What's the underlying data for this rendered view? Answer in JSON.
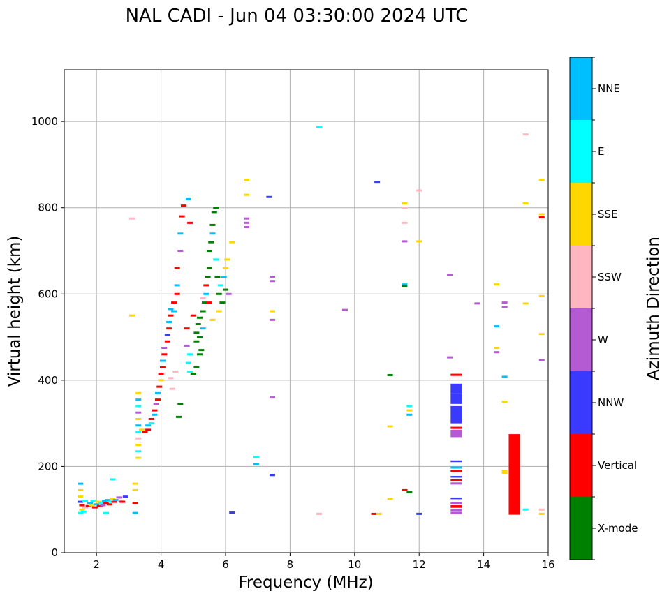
{
  "chart_data": {
    "type": "scatter",
    "title": "NAL CADI - Jun 04 03:30:00 2024 UTC",
    "xlabel": "Frequency (MHz)",
    "ylabel": "Virtual height (km)",
    "xlim": [
      1,
      16
    ],
    "ylim": [
      0,
      1120
    ],
    "xticks": [
      2,
      4,
      6,
      8,
      10,
      12,
      14,
      16
    ],
    "yticks": [
      0,
      200,
      400,
      600,
      800,
      1000
    ],
    "grid": true,
    "colorbar": {
      "label": "Azimuth Direction",
      "categories": [
        {
          "name": "X-mode",
          "color": "#008000"
        },
        {
          "name": "Vertical",
          "color": "#ff0000"
        },
        {
          "name": "NNW",
          "color": "#3a3aff"
        },
        {
          "name": "W",
          "color": "#b45ad2"
        },
        {
          "name": "SSW",
          "color": "#ffb6c1"
        },
        {
          "name": "SSE",
          "color": "#ffd700"
        },
        {
          "name": "E",
          "color": "#00ffff"
        },
        {
          "name": "NNE",
          "color": "#00bfff"
        }
      ]
    },
    "points": [
      {
        "f": 1.5,
        "h": 160,
        "c": "NNE"
      },
      {
        "f": 1.5,
        "h": 145,
        "c": "SSE"
      },
      {
        "f": 1.5,
        "h": 130,
        "c": "SSE"
      },
      {
        "f": 1.5,
        "h": 118,
        "c": "NNW"
      },
      {
        "f": 1.55,
        "h": 110,
        "c": "Vertical"
      },
      {
        "f": 1.55,
        "h": 100,
        "c": "SSE"
      },
      {
        "f": 1.6,
        "h": 95,
        "c": "E"
      },
      {
        "f": 1.5,
        "h": 92,
        "c": "E"
      },
      {
        "f": 1.65,
        "h": 105,
        "c": "SSW"
      },
      {
        "f": 1.65,
        "h": 120,
        "c": "E"
      },
      {
        "f": 1.75,
        "h": 108,
        "c": "Vertical"
      },
      {
        "f": 1.8,
        "h": 115,
        "c": "NNE"
      },
      {
        "f": 1.85,
        "h": 110,
        "c": "SSE"
      },
      {
        "f": 1.9,
        "h": 120,
        "c": "E"
      },
      {
        "f": 1.95,
        "h": 105,
        "c": "Vertical"
      },
      {
        "f": 2.0,
        "h": 112,
        "c": "NNE"
      },
      {
        "f": 2.05,
        "h": 118,
        "c": "SSE"
      },
      {
        "f": 2.1,
        "h": 108,
        "c": "Vertical"
      },
      {
        "f": 2.15,
        "h": 115,
        "c": "E"
      },
      {
        "f": 2.2,
        "h": 110,
        "c": "W"
      },
      {
        "f": 2.25,
        "h": 120,
        "c": "NNE"
      },
      {
        "f": 2.3,
        "h": 115,
        "c": "Vertical"
      },
      {
        "f": 2.3,
        "h": 92,
        "c": "E"
      },
      {
        "f": 2.35,
        "h": 122,
        "c": "NNE"
      },
      {
        "f": 2.4,
        "h": 112,
        "c": "Vertical"
      },
      {
        "f": 2.45,
        "h": 118,
        "c": "E"
      },
      {
        "f": 2.5,
        "h": 125,
        "c": "SSE"
      },
      {
        "f": 2.5,
        "h": 170,
        "c": "E"
      },
      {
        "f": 2.55,
        "h": 118,
        "c": "Vertical"
      },
      {
        "f": 2.6,
        "h": 122,
        "c": "NNE"
      },
      {
        "f": 2.7,
        "h": 128,
        "c": "W"
      },
      {
        "f": 2.75,
        "h": 120,
        "c": "SSW"
      },
      {
        "f": 2.8,
        "h": 118,
        "c": "Vertical"
      },
      {
        "f": 2.9,
        "h": 130,
        "c": "NNW"
      },
      {
        "f": 3.2,
        "h": 160,
        "c": "SSE"
      },
      {
        "f": 3.2,
        "h": 145,
        "c": "SSE"
      },
      {
        "f": 3.2,
        "h": 115,
        "c": "Vertical"
      },
      {
        "f": 3.2,
        "h": 92,
        "c": "NNE"
      },
      {
        "f": 3.3,
        "h": 370,
        "c": "SSE"
      },
      {
        "f": 3.3,
        "h": 355,
        "c": "NNE"
      },
      {
        "f": 3.3,
        "h": 340,
        "c": "E"
      },
      {
        "f": 3.3,
        "h": 325,
        "c": "W"
      },
      {
        "f": 3.3,
        "h": 310,
        "c": "SSE"
      },
      {
        "f": 3.3,
        "h": 295,
        "c": "NNE"
      },
      {
        "f": 3.3,
        "h": 280,
        "c": "E"
      },
      {
        "f": 3.3,
        "h": 265,
        "c": "SSW"
      },
      {
        "f": 3.3,
        "h": 250,
        "c": "SSE"
      },
      {
        "f": 3.3,
        "h": 235,
        "c": "E"
      },
      {
        "f": 3.3,
        "h": 220,
        "c": "SSE"
      },
      {
        "f": 3.4,
        "h": 285,
        "c": "SSE"
      },
      {
        "f": 3.5,
        "h": 280,
        "c": "Vertical"
      },
      {
        "f": 3.6,
        "h": 295,
        "c": "NNE"
      },
      {
        "f": 3.6,
        "h": 285,
        "c": "Vertical"
      },
      {
        "f": 3.7,
        "h": 300,
        "c": "E"
      },
      {
        "f": 3.7,
        "h": 310,
        "c": "Vertical"
      },
      {
        "f": 3.8,
        "h": 320,
        "c": "NNE"
      },
      {
        "f": 3.8,
        "h": 330,
        "c": "Vertical"
      },
      {
        "f": 3.85,
        "h": 345,
        "c": "W"
      },
      {
        "f": 3.9,
        "h": 355,
        "c": "Vertical"
      },
      {
        "f": 3.9,
        "h": 370,
        "c": "NNE"
      },
      {
        "f": 3.95,
        "h": 385,
        "c": "Vertical"
      },
      {
        "f": 4.0,
        "h": 400,
        "c": "SSE"
      },
      {
        "f": 4.0,
        "h": 415,
        "c": "Vertical"
      },
      {
        "f": 4.05,
        "h": 430,
        "c": "Vertical"
      },
      {
        "f": 4.05,
        "h": 445,
        "c": "NNE"
      },
      {
        "f": 4.1,
        "h": 460,
        "c": "Vertical"
      },
      {
        "f": 4.1,
        "h": 475,
        "c": "W"
      },
      {
        "f": 4.2,
        "h": 490,
        "c": "Vertical"
      },
      {
        "f": 4.2,
        "h": 505,
        "c": "NNW"
      },
      {
        "f": 4.25,
        "h": 520,
        "c": "Vertical"
      },
      {
        "f": 4.25,
        "h": 535,
        "c": "NNE"
      },
      {
        "f": 4.3,
        "h": 550,
        "c": "Vertical"
      },
      {
        "f": 4.3,
        "h": 565,
        "c": "NNE"
      },
      {
        "f": 4.4,
        "h": 580,
        "c": "Vertical"
      },
      {
        "f": 4.4,
        "h": 560,
        "c": "NNE"
      },
      {
        "f": 4.5,
        "h": 600,
        "c": "Vertical"
      },
      {
        "f": 4.5,
        "h": 620,
        "c": "NNE"
      },
      {
        "f": 4.5,
        "h": 660,
        "c": "Vertical"
      },
      {
        "f": 4.6,
        "h": 700,
        "c": "W"
      },
      {
        "f": 4.65,
        "h": 780,
        "c": "Vertical"
      },
      {
        "f": 4.7,
        "h": 805,
        "c": "Vertical"
      },
      {
        "f": 4.6,
        "h": 740,
        "c": "NNE"
      },
      {
        "f": 4.6,
        "h": 345,
        "c": "X-mode"
      },
      {
        "f": 4.55,
        "h": 315,
        "c": "X-mode"
      },
      {
        "f": 4.45,
        "h": 420,
        "c": "SSW"
      },
      {
        "f": 4.3,
        "h": 405,
        "c": "SSW"
      },
      {
        "f": 4.35,
        "h": 380,
        "c": "SSW"
      },
      {
        "f": 4.8,
        "h": 520,
        "c": "Vertical"
      },
      {
        "f": 4.8,
        "h": 480,
        "c": "W"
      },
      {
        "f": 4.85,
        "h": 440,
        "c": "E"
      },
      {
        "f": 4.9,
        "h": 420,
        "c": "E"
      },
      {
        "f": 4.9,
        "h": 460,
        "c": "E"
      },
      {
        "f": 4.9,
        "h": 765,
        "c": "Vertical"
      },
      {
        "f": 4.85,
        "h": 820,
        "c": "NNE"
      },
      {
        "f": 5.0,
        "h": 415,
        "c": "X-mode"
      },
      {
        "f": 5.0,
        "h": 550,
        "c": "Vertical"
      },
      {
        "f": 5.1,
        "h": 490,
        "c": "X-mode"
      },
      {
        "f": 5.1,
        "h": 510,
        "c": "X-mode"
      },
      {
        "f": 5.15,
        "h": 530,
        "c": "X-mode"
      },
      {
        "f": 5.2,
        "h": 500,
        "c": "X-mode"
      },
      {
        "f": 5.2,
        "h": 545,
        "c": "X-mode"
      },
      {
        "f": 5.25,
        "h": 470,
        "c": "X-mode"
      },
      {
        "f": 5.3,
        "h": 520,
        "c": "NNE"
      },
      {
        "f": 5.3,
        "h": 560,
        "c": "X-mode"
      },
      {
        "f": 5.35,
        "h": 580,
        "c": "X-mode"
      },
      {
        "f": 5.4,
        "h": 600,
        "c": "NNE"
      },
      {
        "f": 5.4,
        "h": 620,
        "c": "Vertical"
      },
      {
        "f": 5.45,
        "h": 640,
        "c": "X-mode"
      },
      {
        "f": 5.5,
        "h": 660,
        "c": "X-mode"
      },
      {
        "f": 5.5,
        "h": 700,
        "c": "X-mode"
      },
      {
        "f": 5.55,
        "h": 720,
        "c": "X-mode"
      },
      {
        "f": 5.6,
        "h": 740,
        "c": "NNE"
      },
      {
        "f": 5.6,
        "h": 760,
        "c": "X-mode"
      },
      {
        "f": 5.65,
        "h": 790,
        "c": "X-mode"
      },
      {
        "f": 5.7,
        "h": 800,
        "c": "X-mode"
      },
      {
        "f": 5.7,
        "h": 680,
        "c": "E"
      },
      {
        "f": 5.75,
        "h": 640,
        "c": "X-mode"
      },
      {
        "f": 5.8,
        "h": 600,
        "c": "X-mode"
      },
      {
        "f": 5.8,
        "h": 560,
        "c": "SSE"
      },
      {
        "f": 5.85,
        "h": 620,
        "c": "E"
      },
      {
        "f": 5.9,
        "h": 580,
        "c": "X-mode"
      },
      {
        "f": 5.95,
        "h": 640,
        "c": "NNE"
      },
      {
        "f": 6.0,
        "h": 660,
        "c": "SSE"
      },
      {
        "f": 6.0,
        "h": 610,
        "c": "X-mode"
      },
      {
        "f": 6.05,
        "h": 680,
        "c": "SSE"
      },
      {
        "f": 6.1,
        "h": 600,
        "c": "W"
      },
      {
        "f": 6.2,
        "h": 720,
        "c": "SSE"
      },
      {
        "f": 5.6,
        "h": 540,
        "c": "SSE"
      },
      {
        "f": 5.5,
        "h": 580,
        "c": "Vertical"
      },
      {
        "f": 5.3,
        "h": 590,
        "c": "SSW"
      },
      {
        "f": 5.2,
        "h": 460,
        "c": "X-mode"
      },
      {
        "f": 5.1,
        "h": 430,
        "c": "X-mode"
      },
      {
        "f": 3.1,
        "h": 775,
        "c": "SSW"
      },
      {
        "f": 3.1,
        "h": 550,
        "c": "SSE"
      },
      {
        "f": 6.65,
        "h": 865,
        "c": "SSE"
      },
      {
        "f": 6.65,
        "h": 830,
        "c": "SSE"
      },
      {
        "f": 6.65,
        "h": 775,
        "c": "W"
      },
      {
        "f": 6.65,
        "h": 765,
        "c": "W"
      },
      {
        "f": 6.65,
        "h": 755,
        "c": "W"
      },
      {
        "f": 7.35,
        "h": 825,
        "c": "NNW"
      },
      {
        "f": 7.45,
        "h": 640,
        "c": "W"
      },
      {
        "f": 7.45,
        "h": 630,
        "c": "W"
      },
      {
        "f": 7.45,
        "h": 560,
        "c": "SSE"
      },
      {
        "f": 7.45,
        "h": 540,
        "c": "W"
      },
      {
        "f": 7.45,
        "h": 360,
        "c": "W"
      },
      {
        "f": 7.45,
        "h": 180,
        "c": "NNW"
      },
      {
        "f": 6.95,
        "h": 222,
        "c": "E"
      },
      {
        "f": 6.95,
        "h": 205,
        "c": "NNE"
      },
      {
        "f": 6.2,
        "h": 93,
        "c": "NNW"
      },
      {
        "f": 8.9,
        "h": 987,
        "c": "E"
      },
      {
        "f": 8.9,
        "h": 90,
        "c": "SSW"
      },
      {
        "f": 9.7,
        "h": 563,
        "c": "W"
      },
      {
        "f": 10.7,
        "h": 860,
        "c": "NNW"
      },
      {
        "f": 10.6,
        "h": 90,
        "c": "Vertical"
      },
      {
        "f": 10.75,
        "h": 90,
        "c": "SSE"
      },
      {
        "f": 11.1,
        "h": 412,
        "c": "X-mode"
      },
      {
        "f": 11.1,
        "h": 293,
        "c": "SSE"
      },
      {
        "f": 11.1,
        "h": 125,
        "c": "SSE"
      },
      {
        "f": 11.55,
        "h": 145,
        "c": "Vertical"
      },
      {
        "f": 11.55,
        "h": 810,
        "c": "SSE"
      },
      {
        "f": 11.55,
        "h": 800,
        "c": "SSW"
      },
      {
        "f": 11.55,
        "h": 765,
        "c": "SSW"
      },
      {
        "f": 11.55,
        "h": 722,
        "c": "W"
      },
      {
        "f": 11.55,
        "h": 622,
        "c": "NNE"
      },
      {
        "f": 11.55,
        "h": 618,
        "c": "X-mode"
      },
      {
        "f": 11.7,
        "h": 340,
        "c": "E"
      },
      {
        "f": 11.7,
        "h": 330,
        "c": "SSE"
      },
      {
        "f": 11.7,
        "h": 320,
        "c": "NNE"
      },
      {
        "f": 11.7,
        "h": 140,
        "c": "X-mode"
      },
      {
        "f": 12.0,
        "h": 840,
        "c": "SSW"
      },
      {
        "f": 12.0,
        "h": 722,
        "c": "SSE"
      },
      {
        "f": 12.0,
        "h": 90,
        "c": "NNW"
      },
      {
        "f": 12.95,
        "h": 645,
        "c": "W"
      },
      {
        "f": 12.95,
        "h": 453,
        "c": "W"
      },
      {
        "f": 13.8,
        "h": 578,
        "c": "W"
      },
      {
        "f": 14.4,
        "h": 622,
        "c": "SSE"
      },
      {
        "f": 14.4,
        "h": 525,
        "c": "NNE"
      },
      {
        "f": 14.4,
        "h": 475,
        "c": "SSE"
      },
      {
        "f": 14.4,
        "h": 465,
        "c": "W"
      },
      {
        "f": 14.65,
        "h": 580,
        "c": "W"
      },
      {
        "f": 14.65,
        "h": 570,
        "c": "W"
      },
      {
        "f": 14.65,
        "h": 408,
        "c": "NNE"
      },
      {
        "f": 14.65,
        "h": 350,
        "c": "SSE"
      },
      {
        "f": 14.65,
        "h": 190,
        "c": "SSE"
      },
      {
        "f": 14.65,
        "h": 185,
        "c": "SSE"
      },
      {
        "f": 15.3,
        "h": 970,
        "c": "SSW"
      },
      {
        "f": 15.3,
        "h": 810,
        "c": "SSE"
      },
      {
        "f": 15.3,
        "h": 578,
        "c": "SSE"
      },
      {
        "f": 15.3,
        "h": 100,
        "c": "E"
      },
      {
        "f": 15.8,
        "h": 865,
        "c": "SSE"
      },
      {
        "f": 15.8,
        "h": 785,
        "c": "SSE"
      },
      {
        "f": 15.8,
        "h": 778,
        "c": "Vertical"
      },
      {
        "f": 15.8,
        "h": 595,
        "c": "SSE"
      },
      {
        "f": 15.8,
        "h": 507,
        "c": "SSE"
      },
      {
        "f": 15.8,
        "h": 447,
        "c": "W"
      },
      {
        "f": 15.8,
        "h": 100,
        "c": "SSW"
      },
      {
        "f": 15.8,
        "h": 90,
        "c": "SSE"
      }
    ],
    "bars": [
      {
        "f": 13.15,
        "h_from": 392,
        "h_to": 370,
        "c": "NNW"
      },
      {
        "f": 13.15,
        "h_from": 370,
        "h_to": 345,
        "c": "NNW"
      },
      {
        "f": 13.15,
        "h_from": 340,
        "h_to": 300,
        "c": "NNW"
      },
      {
        "f": 13.15,
        "h_from": 285,
        "h_to": 268,
        "c": "W"
      },
      {
        "f": 13.15,
        "h_from": 415,
        "h_to": 410,
        "c": "Vertical"
      },
      {
        "f": 13.15,
        "h_from": 292,
        "h_to": 287,
        "c": "Vertical"
      },
      {
        "f": 13.15,
        "h_from": 214,
        "h_to": 210,
        "c": "NNW"
      },
      {
        "f": 13.15,
        "h_from": 200,
        "h_to": 195,
        "c": "NNE"
      },
      {
        "f": 13.15,
        "h_from": 192,
        "h_to": 187,
        "c": "Vertical"
      },
      {
        "f": 13.15,
        "h_from": 178,
        "h_to": 174,
        "c": "NNW"
      },
      {
        "f": 13.15,
        "h_from": 170,
        "h_to": 165,
        "c": "Vertical"
      },
      {
        "f": 13.15,
        "h_from": 163,
        "h_to": 158,
        "c": "W"
      },
      {
        "f": 13.15,
        "h_from": 128,
        "h_to": 124,
        "c": "NNW"
      },
      {
        "f": 13.15,
        "h_from": 118,
        "h_to": 112,
        "c": "W"
      },
      {
        "f": 13.15,
        "h_from": 110,
        "h_to": 104,
        "c": "Vertical"
      },
      {
        "f": 13.15,
        "h_from": 102,
        "h_to": 96,
        "c": "W"
      },
      {
        "f": 13.15,
        "h_from": 95,
        "h_to": 89,
        "c": "W"
      },
      {
        "f": 14.95,
        "h_from": 275,
        "h_to": 88,
        "c": "Vertical"
      }
    ]
  }
}
